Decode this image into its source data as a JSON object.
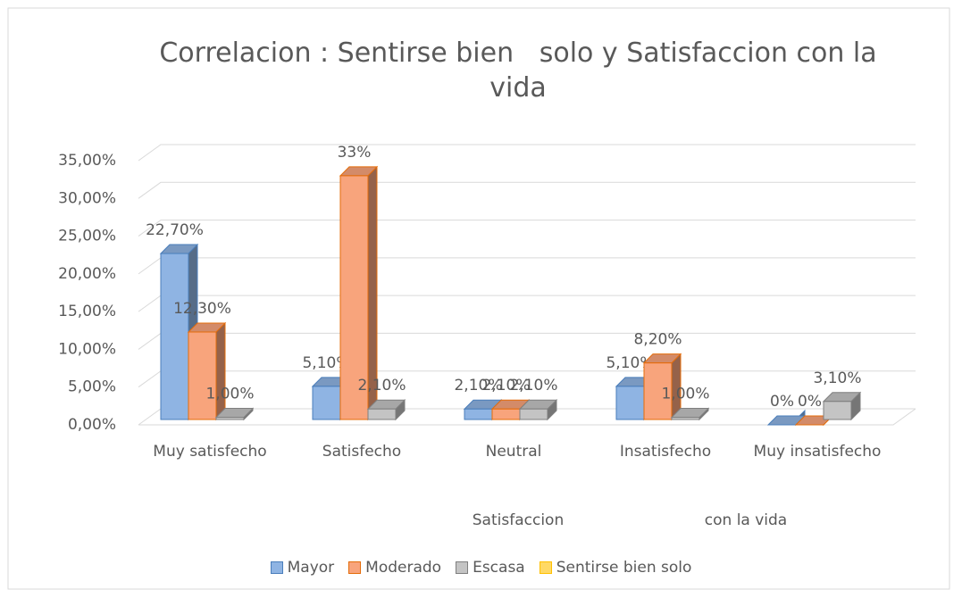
{
  "chart_data": {
    "type": "bar3d",
    "title": "Correlacion : Sentirse bien   solo y Satisfaccion con la vida",
    "categories": [
      "Muy satisfecho",
      "Satisfecho",
      "Neutral",
      "Insatisfecho",
      "Muy insatisfecho"
    ],
    "series": [
      {
        "name": "Mayor",
        "color": "#8fb4e3",
        "edge": "#4a7ebb",
        "values": [
          22.7,
          5.1,
          2.1,
          5.1,
          0
        ],
        "value_labels": [
          "22,70%",
          "5,10%",
          "2,10%",
          "5,10%",
          "0%"
        ]
      },
      {
        "name": "Moderado",
        "color": "#f8a47c",
        "edge": "#e46c0a",
        "values": [
          12.3,
          33,
          2.1,
          8.2,
          0
        ],
        "value_labels": [
          "12,30%",
          "33%",
          "2,10%",
          "8,20%",
          "0%"
        ]
      },
      {
        "name": "Escasa",
        "color": "#c4c4c4",
        "edge": "#7f7f7f",
        "values": [
          1,
          2.1,
          2.1,
          1,
          3.1
        ],
        "value_labels": [
          "1,00%",
          "2,10%",
          "2,10%",
          "1,00%",
          "3,10%"
        ]
      },
      {
        "name": "Sentirse bien solo",
        "color": "#ffd966",
        "edge": "#ffc000",
        "values": [
          null,
          null,
          null,
          null,
          null
        ]
      }
    ],
    "x_axis_label": [
      "Satisfaccion",
      "con la vida"
    ],
    "ylim": [
      0,
      35
    ],
    "yticks": [
      {
        "value": 0,
        "label": "0,00%"
      },
      {
        "value": 5,
        "label": "5,00%"
      },
      {
        "value": 10,
        "label": "10,00%"
      },
      {
        "value": 15,
        "label": "15,00%"
      },
      {
        "value": 20,
        "label": "20,00%"
      },
      {
        "value": 25,
        "label": "25,00%"
      },
      {
        "value": 30,
        "label": "30,00%"
      },
      {
        "value": 35,
        "label": "35,00%"
      }
    ],
    "grid": true,
    "legend": "bottom"
  }
}
